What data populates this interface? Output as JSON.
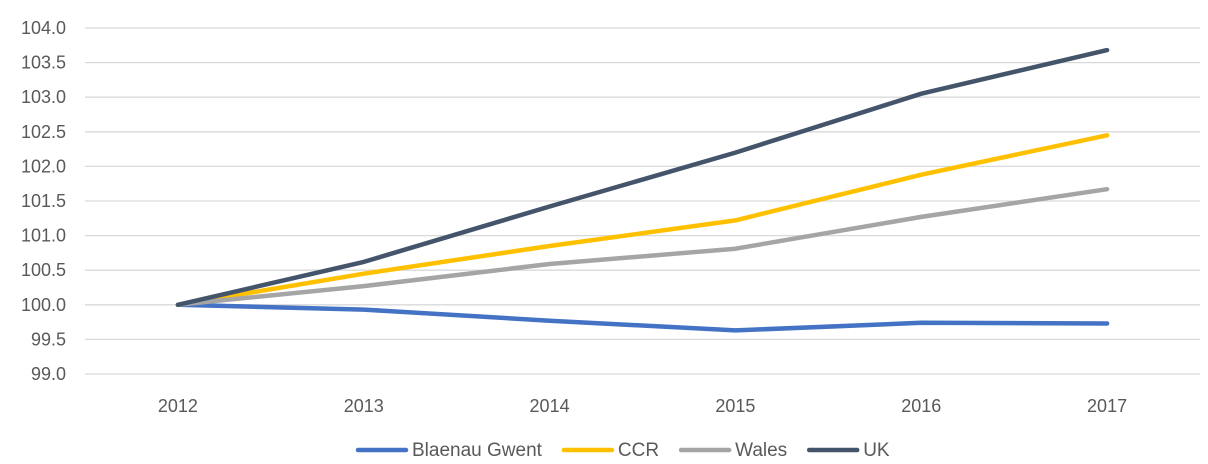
{
  "chart_data": {
    "type": "line",
    "title": "",
    "xlabel": "",
    "ylabel": "",
    "categories": [
      "2012",
      "2013",
      "2014",
      "2015",
      "2016",
      "2017"
    ],
    "ylim": [
      99.0,
      104.0
    ],
    "yticks": [
      "99.0",
      "99.5",
      "100.0",
      "100.5",
      "101.0",
      "101.5",
      "102.0",
      "102.5",
      "103.0",
      "103.5",
      "104.0"
    ],
    "grid": true,
    "legend_position": "bottom",
    "series": [
      {
        "name": "Blaenau Gwent",
        "color": "#4472C4",
        "values": [
          100.0,
          99.93,
          99.77,
          99.63,
          99.74,
          99.73
        ]
      },
      {
        "name": "CCR",
        "color": "#FFC000",
        "values": [
          100.0,
          100.45,
          100.85,
          101.22,
          101.88,
          102.45
        ]
      },
      {
        "name": "Wales",
        "color": "#A5A5A5",
        "values": [
          100.0,
          100.27,
          100.59,
          100.81,
          101.27,
          101.67
        ]
      },
      {
        "name": "UK",
        "color": "#44546A",
        "values": [
          100.0,
          100.62,
          101.42,
          102.2,
          103.05,
          103.68
        ]
      }
    ]
  }
}
